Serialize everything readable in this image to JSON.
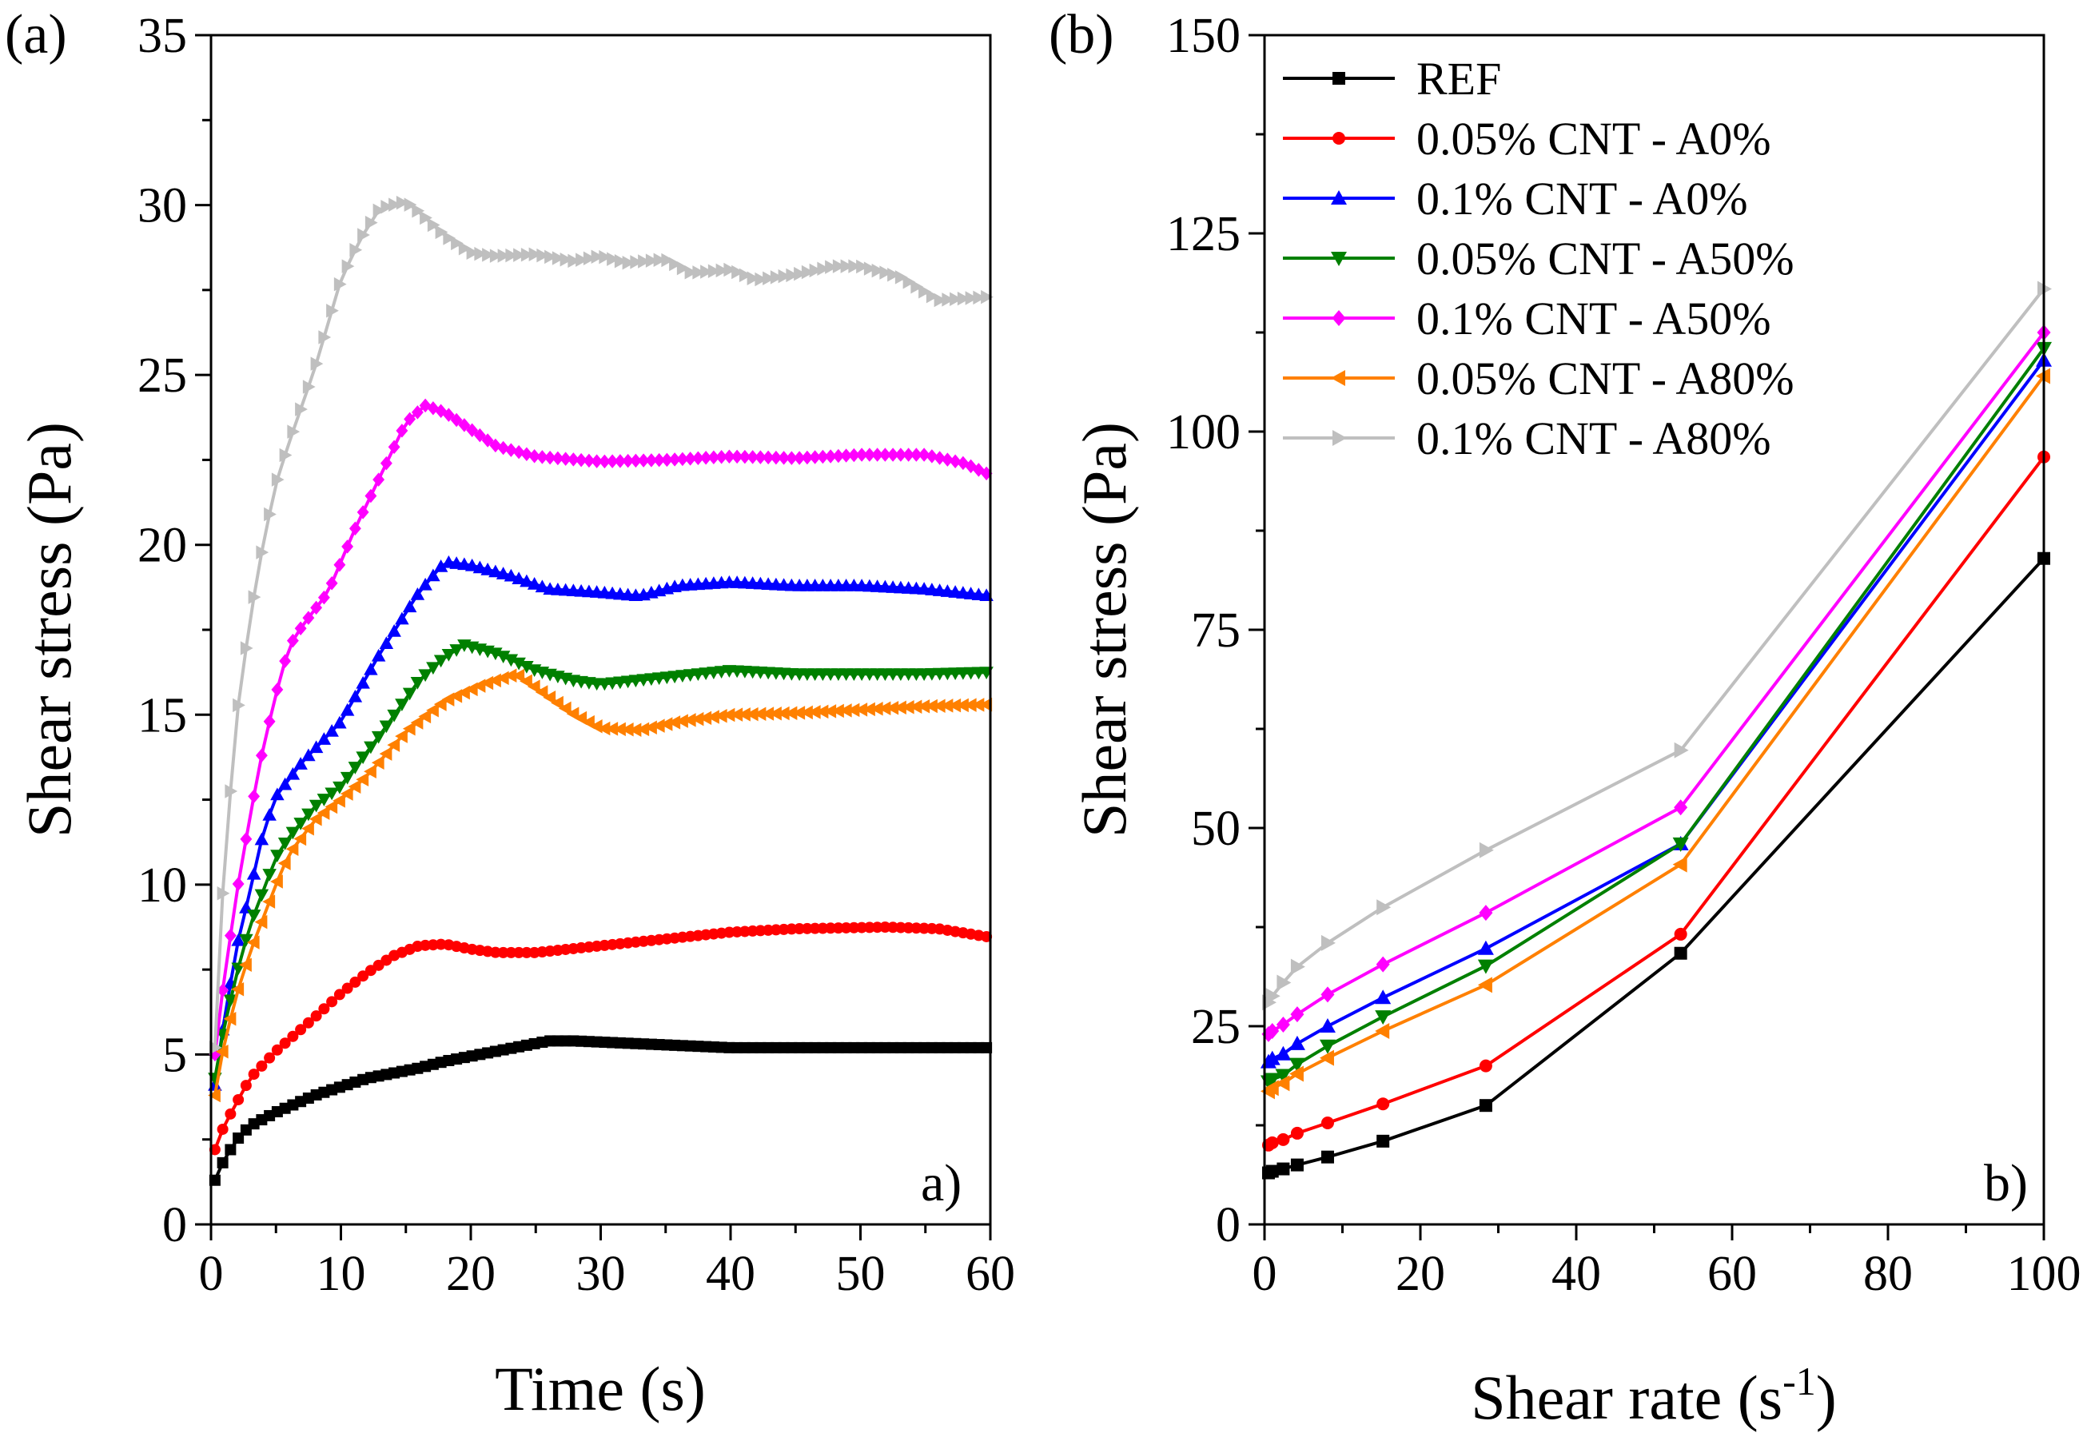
{
  "chart_data": [
    {
      "type": "line",
      "panel": "(a)",
      "corner_label": "a)",
      "xlabel": "Time (s)",
      "ylabel": "Shear stress (Pa)",
      "xlim": [
        0,
        60
      ],
      "ylim": [
        0,
        35
      ],
      "xticks": [
        0,
        10,
        20,
        30,
        40,
        50,
        60
      ],
      "yticks": [
        0,
        5,
        10,
        15,
        20,
        25,
        30,
        35
      ],
      "marker_step_s": 0.6,
      "series": [
        {
          "name": "REF",
          "color": "#000000",
          "marker": "square",
          "points": [
            [
              0.3,
              1.3
            ],
            [
              1,
              1.9
            ],
            [
              2,
              2.5
            ],
            [
              3,
              2.9
            ],
            [
              5,
              3.3
            ],
            [
              8,
              3.8
            ],
            [
              12,
              4.3
            ],
            [
              16,
              4.6
            ],
            [
              18,
              4.8
            ],
            [
              22,
              5.1
            ],
            [
              26,
              5.4
            ],
            [
              28,
              5.4
            ],
            [
              34,
              5.3
            ],
            [
              40,
              5.2
            ],
            [
              50,
              5.2
            ],
            [
              60,
              5.2
            ]
          ]
        },
        {
          "name": "0.05% CNT - A0%",
          "color": "#ff0000",
          "marker": "circle",
          "points": [
            [
              0.3,
              2.2
            ],
            [
              1,
              2.9
            ],
            [
              2,
              3.6
            ],
            [
              3,
              4.3
            ],
            [
              5,
              5.1
            ],
            [
              8,
              6.1
            ],
            [
              10,
              6.8
            ],
            [
              12,
              7.4
            ],
            [
              14,
              7.9
            ],
            [
              16,
              8.2
            ],
            [
              18,
              8.25
            ],
            [
              20,
              8.1
            ],
            [
              22,
              8.0
            ],
            [
              25,
              8.0
            ],
            [
              30,
              8.2
            ],
            [
              35,
              8.4
            ],
            [
              40,
              8.6
            ],
            [
              45,
              8.7
            ],
            [
              52,
              8.75
            ],
            [
              56,
              8.7
            ],
            [
              60,
              8.45
            ]
          ]
        },
        {
          "name": "0.1% CNT - A0%",
          "color": "#0000ff",
          "marker": "triangle-up",
          "points": [
            [
              0.3,
              4.1
            ],
            [
              1,
              6.0
            ],
            [
              2,
              8.2
            ],
            [
              3,
              9.8
            ],
            [
              4,
              11.5
            ],
            [
              5,
              12.6
            ],
            [
              7,
              13.6
            ],
            [
              10,
              14.8
            ],
            [
              13,
              16.8
            ],
            [
              16,
              18.6
            ],
            [
              18,
              19.5
            ],
            [
              20,
              19.4
            ],
            [
              23,
              19.1
            ],
            [
              26,
              18.7
            ],
            [
              30,
              18.6
            ],
            [
              33,
              18.5
            ],
            [
              36,
              18.8
            ],
            [
              40,
              18.9
            ],
            [
              45,
              18.8
            ],
            [
              50,
              18.8
            ],
            [
              55,
              18.7
            ],
            [
              60,
              18.5
            ]
          ]
        },
        {
          "name": "0.05% CNT - A50%",
          "color": "#008000",
          "marker": "triangle-down",
          "points": [
            [
              0.3,
              4.3
            ],
            [
              1,
              5.8
            ],
            [
              2,
              7.4
            ],
            [
              3,
              8.8
            ],
            [
              4,
              9.8
            ],
            [
              5,
              10.8
            ],
            [
              6,
              11.4
            ],
            [
              8,
              12.3
            ],
            [
              10,
              12.9
            ],
            [
              13,
              14.4
            ],
            [
              16,
              16.0
            ],
            [
              18,
              16.7
            ],
            [
              19.5,
              17.05
            ],
            [
              22,
              16.8
            ],
            [
              25,
              16.3
            ],
            [
              28,
              16.0
            ],
            [
              30,
              15.9
            ],
            [
              35,
              16.1
            ],
            [
              40,
              16.3
            ],
            [
              45,
              16.2
            ],
            [
              50,
              16.2
            ],
            [
              55,
              16.2
            ],
            [
              60,
              16.25
            ]
          ]
        },
        {
          "name": "0.1% CNT - A50%",
          "color": "#ff00ff",
          "marker": "diamond",
          "points": [
            [
              0.3,
              5.0
            ],
            [
              1,
              7.2
            ],
            [
              2,
              9.8
            ],
            [
              3,
              12.0
            ],
            [
              4,
              14.0
            ],
            [
              5,
              15.6
            ],
            [
              6,
              17.0
            ],
            [
              7,
              17.6
            ],
            [
              9,
              18.6
            ],
            [
              11,
              20.4
            ],
            [
              13,
              22.0
            ],
            [
              15,
              23.6
            ],
            [
              16.5,
              24.1
            ],
            [
              18,
              23.9
            ],
            [
              20,
              23.4
            ],
            [
              22,
              22.9
            ],
            [
              25,
              22.6
            ],
            [
              30,
              22.45
            ],
            [
              35,
              22.5
            ],
            [
              40,
              22.6
            ],
            [
              45,
              22.55
            ],
            [
              50,
              22.65
            ],
            [
              55,
              22.65
            ],
            [
              58,
              22.4
            ],
            [
              60,
              22.05
            ]
          ]
        },
        {
          "name": "0.05% CNT - A80%",
          "color": "#ff8000",
          "marker": "triangle-left",
          "points": [
            [
              0.3,
              3.8
            ],
            [
              1,
              5.3
            ],
            [
              2,
              6.8
            ],
            [
              3,
              8.0
            ],
            [
              4,
              9.0
            ],
            [
              5,
              10.0
            ],
            [
              6,
              10.9
            ],
            [
              8,
              11.9
            ],
            [
              10,
              12.5
            ],
            [
              12,
              13.2
            ],
            [
              15,
              14.5
            ],
            [
              18,
              15.4
            ],
            [
              21,
              15.9
            ],
            [
              23.5,
              16.2
            ],
            [
              25,
              15.8
            ],
            [
              28,
              15.0
            ],
            [
              30,
              14.6
            ],
            [
              33,
              14.55
            ],
            [
              36,
              14.8
            ],
            [
              40,
              15.0
            ],
            [
              45,
              15.05
            ],
            [
              50,
              15.15
            ],
            [
              55,
              15.25
            ],
            [
              60,
              15.3
            ]
          ]
        },
        {
          "name": "0.1% CNT - A80%",
          "color": "#bfbfbf",
          "marker": "triangle-right",
          "points": [
            [
              0.3,
              5.2
            ],
            [
              1,
              10.5
            ],
            [
              2,
              15.0
            ],
            [
              3,
              17.8
            ],
            [
              4,
              20.0
            ],
            [
              5,
              21.8
            ],
            [
              6,
              23.0
            ],
            [
              8,
              25.2
            ],
            [
              10,
              27.8
            ],
            [
              11.5,
              29.0
            ],
            [
              13,
              29.9
            ],
            [
              15,
              30.1
            ],
            [
              16,
              29.8
            ],
            [
              18,
              29.1
            ],
            [
              20,
              28.6
            ],
            [
              22,
              28.5
            ],
            [
              25,
              28.55
            ],
            [
              28,
              28.35
            ],
            [
              30,
              28.5
            ],
            [
              32,
              28.3
            ],
            [
              35,
              28.4
            ],
            [
              37,
              28.0
            ],
            [
              40,
              28.1
            ],
            [
              42,
              27.8
            ],
            [
              45,
              27.95
            ],
            [
              48,
              28.2
            ],
            [
              50,
              28.2
            ],
            [
              53,
              27.9
            ],
            [
              56,
              27.2
            ],
            [
              60,
              27.3
            ]
          ]
        }
      ]
    },
    {
      "type": "line",
      "panel": "(b)",
      "corner_label": "b)",
      "xlabel": "Shear rate (s",
      "xlabel_sup": "-1",
      "xlabel_close": ")",
      "ylabel": "Shear stress (Pa)",
      "xlim": [
        0,
        100
      ],
      "ylim": [
        0,
        150
      ],
      "xticks": [
        0,
        20,
        40,
        60,
        80,
        100
      ],
      "yticks": [
        0,
        25,
        50,
        75,
        100,
        125,
        150
      ],
      "x": [
        0.51,
        1.0,
        2.4,
        4.2,
        8.1,
        15.2,
        28.4,
        53.4,
        100
      ],
      "series": [
        {
          "name": "REF",
          "color": "#000000",
          "marker": "square",
          "values": [
            6.5,
            6.7,
            7.0,
            7.5,
            8.5,
            10.5,
            15.0,
            34.2,
            84.0
          ]
        },
        {
          "name": "0.05% CNT - A0%",
          "color": "#ff0000",
          "marker": "circle",
          "values": [
            10.0,
            10.3,
            10.7,
            11.5,
            12.8,
            15.2,
            20.0,
            36.6,
            96.8
          ]
        },
        {
          "name": "0.1% CNT - A0%",
          "color": "#0000ff",
          "marker": "triangle-up",
          "values": [
            20.5,
            20.9,
            21.5,
            22.8,
            25.0,
            28.6,
            34.8,
            48.0,
            109.0
          ]
        },
        {
          "name": "0.05% CNT - A50%",
          "color": "#008000",
          "marker": "triangle-down",
          "values": [
            18.0,
            18.3,
            18.8,
            20.2,
            22.5,
            26.2,
            32.6,
            48.0,
            110.5
          ]
        },
        {
          "name": "0.1% CNT - A50%",
          "color": "#ff00ff",
          "marker": "diamond",
          "values": [
            24.0,
            24.4,
            25.2,
            26.5,
            29.0,
            32.8,
            39.3,
            52.6,
            112.5
          ]
        },
        {
          "name": "0.05% CNT - A80%",
          "color": "#ff8000",
          "marker": "triangle-left",
          "values": [
            16.8,
            17.2,
            17.8,
            19.0,
            21.0,
            24.4,
            30.2,
            45.4,
            107.0
          ]
        },
        {
          "name": "0.1% CNT - A80%",
          "color": "#bfbfbf",
          "marker": "triangle-right",
          "values": [
            28.0,
            28.8,
            30.5,
            32.5,
            35.5,
            40.0,
            47.2,
            59.8,
            118.0
          ]
        }
      ]
    }
  ]
}
